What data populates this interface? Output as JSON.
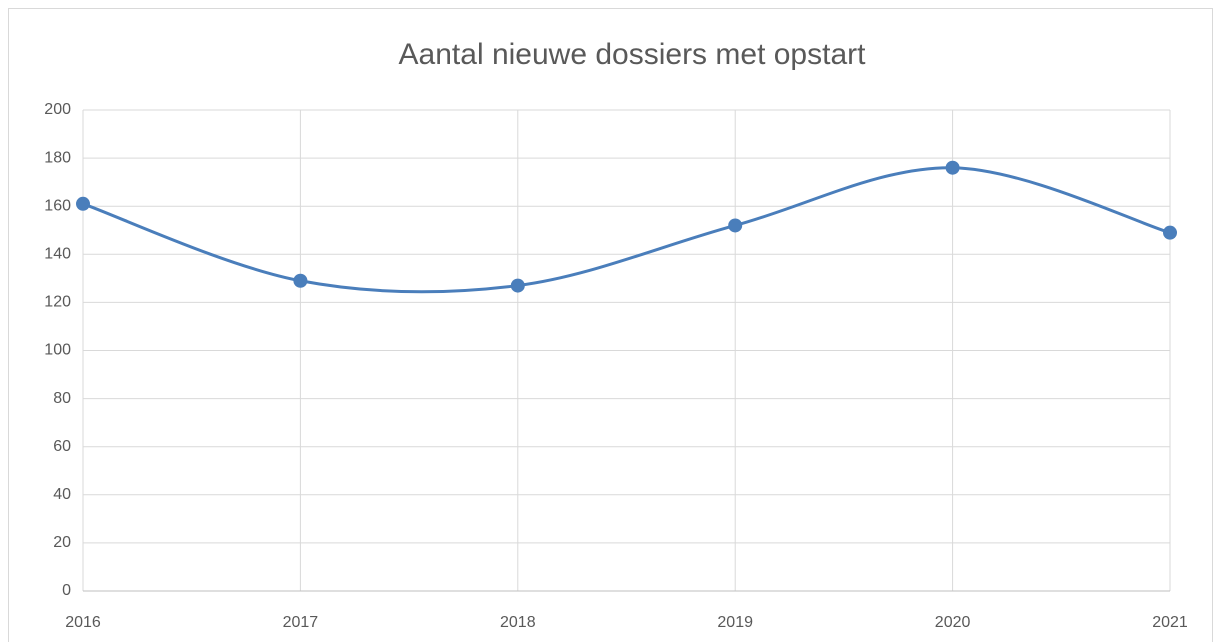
{
  "chart_data": {
    "type": "line",
    "title": "Aantal nieuwe dossiers met opstart",
    "categories": [
      "2016",
      "2017",
      "2018",
      "2019",
      "2020",
      "2021"
    ],
    "series": [
      {
        "name": "Aantal nieuwe dossiers met opstart",
        "color": "#4a7ebb",
        "values": [
          161,
          129,
          127,
          152,
          176,
          149
        ]
      }
    ],
    "ylim": [
      0,
      200
    ],
    "yticks": [
      0,
      20,
      40,
      60,
      80,
      100,
      120,
      140,
      160,
      180,
      200
    ],
    "grid": true,
    "smooth": true
  }
}
